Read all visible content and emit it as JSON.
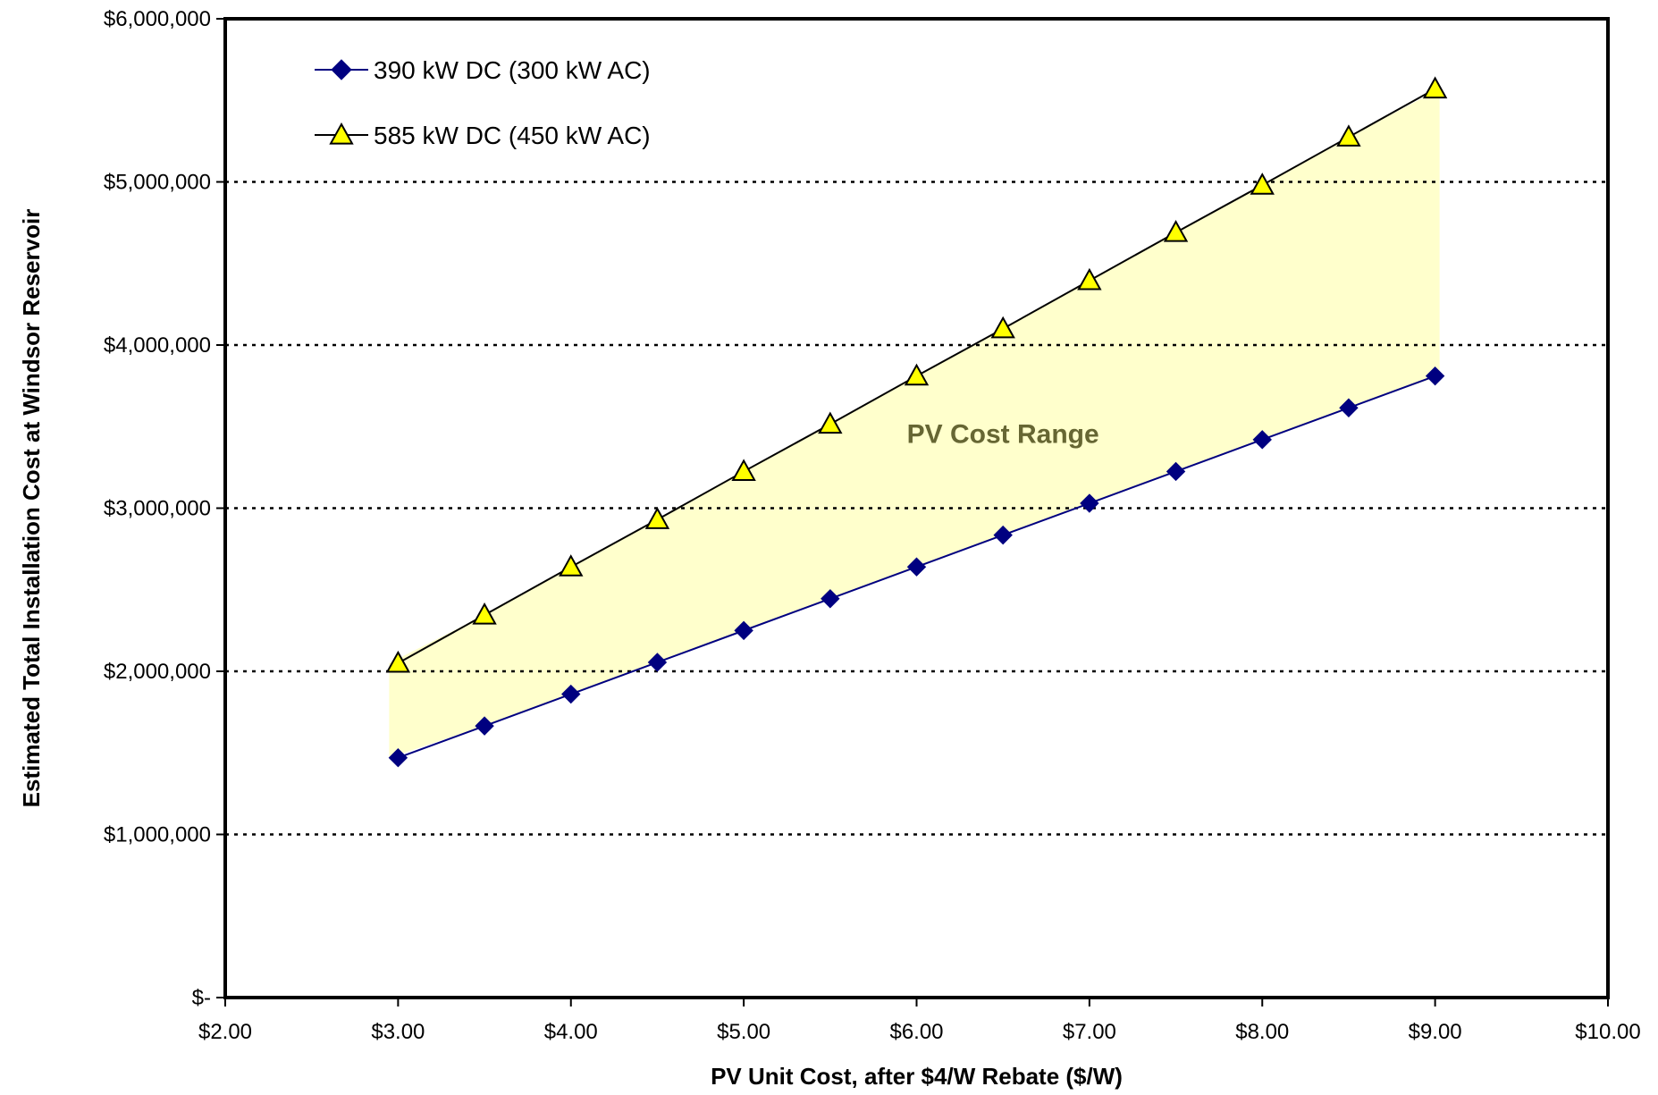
{
  "chart_data": {
    "type": "line",
    "title": "",
    "xlabel": "PV Unit Cost, after $4/W Rebate ($/W)",
    "ylabel": "Estimated Total Installation Cost at Windsor Reservoir",
    "xlim": [
      2,
      10
    ],
    "ylim": [
      0,
      6000000
    ],
    "x_ticks": [
      2,
      3,
      4,
      5,
      6,
      7,
      8,
      9,
      10
    ],
    "x_tick_labels": [
      "$2.00",
      "$3.00",
      "$4.00",
      "$5.00",
      "$6.00",
      "$7.00",
      "$8.00",
      "$9.00",
      "$10.00"
    ],
    "y_ticks": [
      0,
      1000000,
      2000000,
      3000000,
      4000000,
      5000000,
      6000000
    ],
    "y_tick_labels": [
      "$-",
      "$1,000,000",
      "$2,000,000",
      "$3,000,000",
      "$4,000,000",
      "$5,000,000",
      "$6,000,000"
    ],
    "grid": "horizontal dotted",
    "legend_position": "top-left",
    "x": [
      3.0,
      3.5,
      4.0,
      4.5,
      5.0,
      5.5,
      6.0,
      6.5,
      7.0,
      7.5,
      8.0,
      8.5,
      9.0
    ],
    "series": [
      {
        "name": "390 kW DC (300 kW AC)",
        "marker": "diamond",
        "color": "#000080",
        "values": [
          1470000,
          1665000,
          1860000,
          2055000,
          2250000,
          2445000,
          2640000,
          2835000,
          3030000,
          3225000,
          3420000,
          3615000,
          3810000
        ]
      },
      {
        "name": "585 kW DC (450 kW AC)",
        "marker": "triangle",
        "color": "#FFFF00",
        "values": [
          2050000,
          2345000,
          2640000,
          2930000,
          3225000,
          3515000,
          3810000,
          4100000,
          4395000,
          4690000,
          4980000,
          5275000,
          5570000
        ]
      }
    ],
    "shaded_region": {
      "between": "series",
      "color": "#FFFFCC"
    },
    "annotation": {
      "text": "PV Cost Range",
      "x": 6.5,
      "y": 3400000,
      "color": "#666633"
    }
  }
}
